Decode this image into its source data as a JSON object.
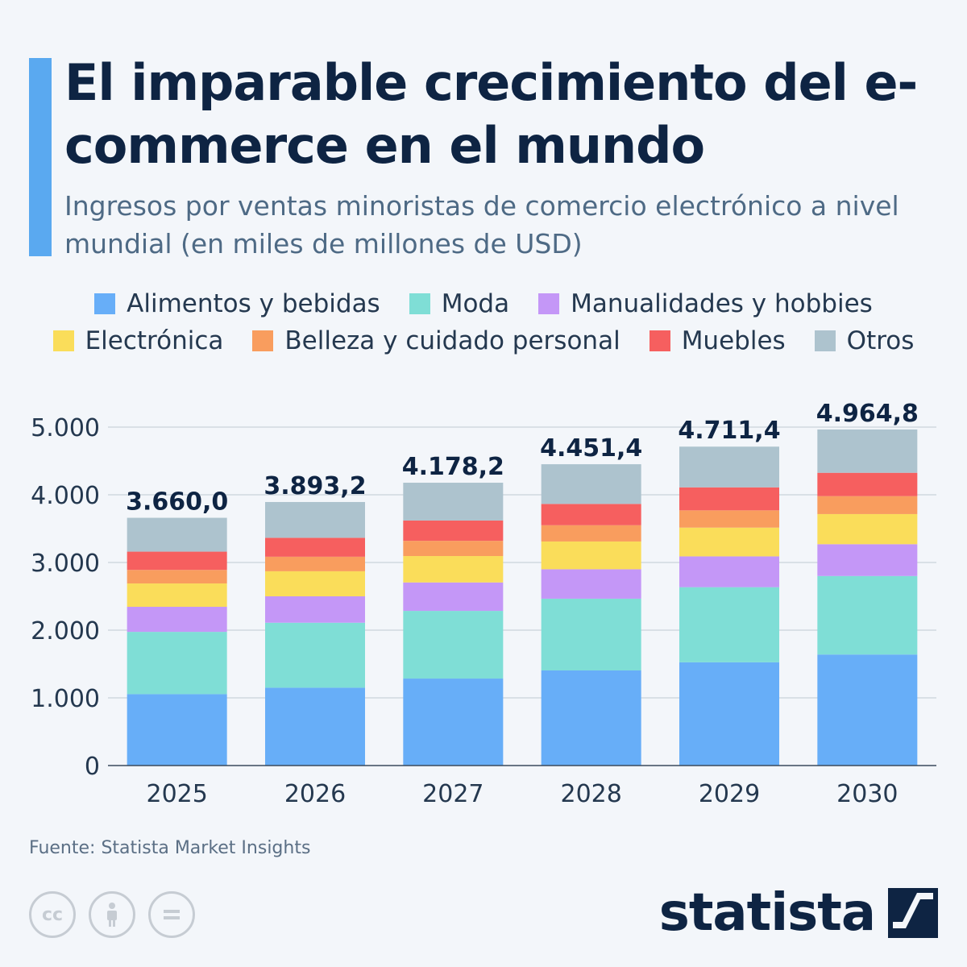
{
  "header": {
    "title": "El imparable crecimiento del e-commerce en el mundo",
    "subtitle": "Ingresos por ventas minoristas de comercio electrónico a nivel mundial (en miles de millones de USD)"
  },
  "legend": {
    "row1": [
      {
        "label": "Alimentos y bebidas",
        "color": "#67aef8"
      },
      {
        "label": "Moda",
        "color": "#7fded6"
      },
      {
        "label": "Manualidades y hobbies",
        "color": "#c497f7"
      }
    ],
    "row2": [
      {
        "label": "Electrónica",
        "color": "#fadd5a"
      },
      {
        "label": "Belleza y cuidado personal",
        "color": "#f99d5e"
      },
      {
        "label": "Muebles",
        "color": "#f65f5f"
      },
      {
        "label": "Otros",
        "color": "#adc3ce"
      }
    ]
  },
  "chart_data": {
    "type": "bar",
    "stacked": true,
    "categories": [
      "2025",
      "2026",
      "2027",
      "2028",
      "2029",
      "2030"
    ],
    "series": [
      {
        "name": "Alimentos y bebidas",
        "color": "#67aef8",
        "values": [
          1055,
          1150,
          1285,
          1405,
          1525,
          1640
        ]
      },
      {
        "name": "Moda",
        "color": "#7fded6",
        "values": [
          920,
          960,
          1000,
          1060,
          1110,
          1160
        ]
      },
      {
        "name": "Manualidades y hobbies",
        "color": "#c497f7",
        "values": [
          370,
          390,
          420,
          435,
          455,
          470
        ]
      },
      {
        "name": "Electrónica",
        "color": "#fadd5a",
        "values": [
          345,
          370,
          390,
          410,
          425,
          445
        ]
      },
      {
        "name": "Belleza y cuidado personal",
        "color": "#f99d5e",
        "values": [
          200,
          215,
          225,
          240,
          255,
          265
        ]
      },
      {
        "name": "Muebles",
        "color": "#f65f5f",
        "values": [
          270,
          280,
          300,
          315,
          340,
          345
        ]
      },
      {
        "name": "Otros",
        "color": "#adc3ce",
        "values": [
          500,
          528.2,
          558.2,
          586.4,
          601.4,
          639.8
        ]
      }
    ],
    "totals": [
      "3.660,0",
      "3.893,2",
      "4.178,2",
      "4.451,4",
      "4.711,4",
      "4.964,8"
    ],
    "total_values": [
      3660.0,
      3893.2,
      4178.2,
      4451.4,
      4711.4,
      4964.8
    ],
    "yticks": [
      {
        "value": 0,
        "label": "0"
      },
      {
        "value": 1000,
        "label": "1.000"
      },
      {
        "value": 2000,
        "label": "2.000"
      },
      {
        "value": 3000,
        "label": "3.000"
      },
      {
        "value": 4000,
        "label": "4.000"
      },
      {
        "value": 5000,
        "label": "5.000"
      }
    ],
    "ylim": [
      0,
      5000
    ],
    "grid": true
  },
  "footer": {
    "source": "Fuente: Statista Market Insights",
    "brand": "statista",
    "license_icons": [
      "cc-icon",
      "attribution-icon",
      "no-derivatives-icon"
    ]
  }
}
